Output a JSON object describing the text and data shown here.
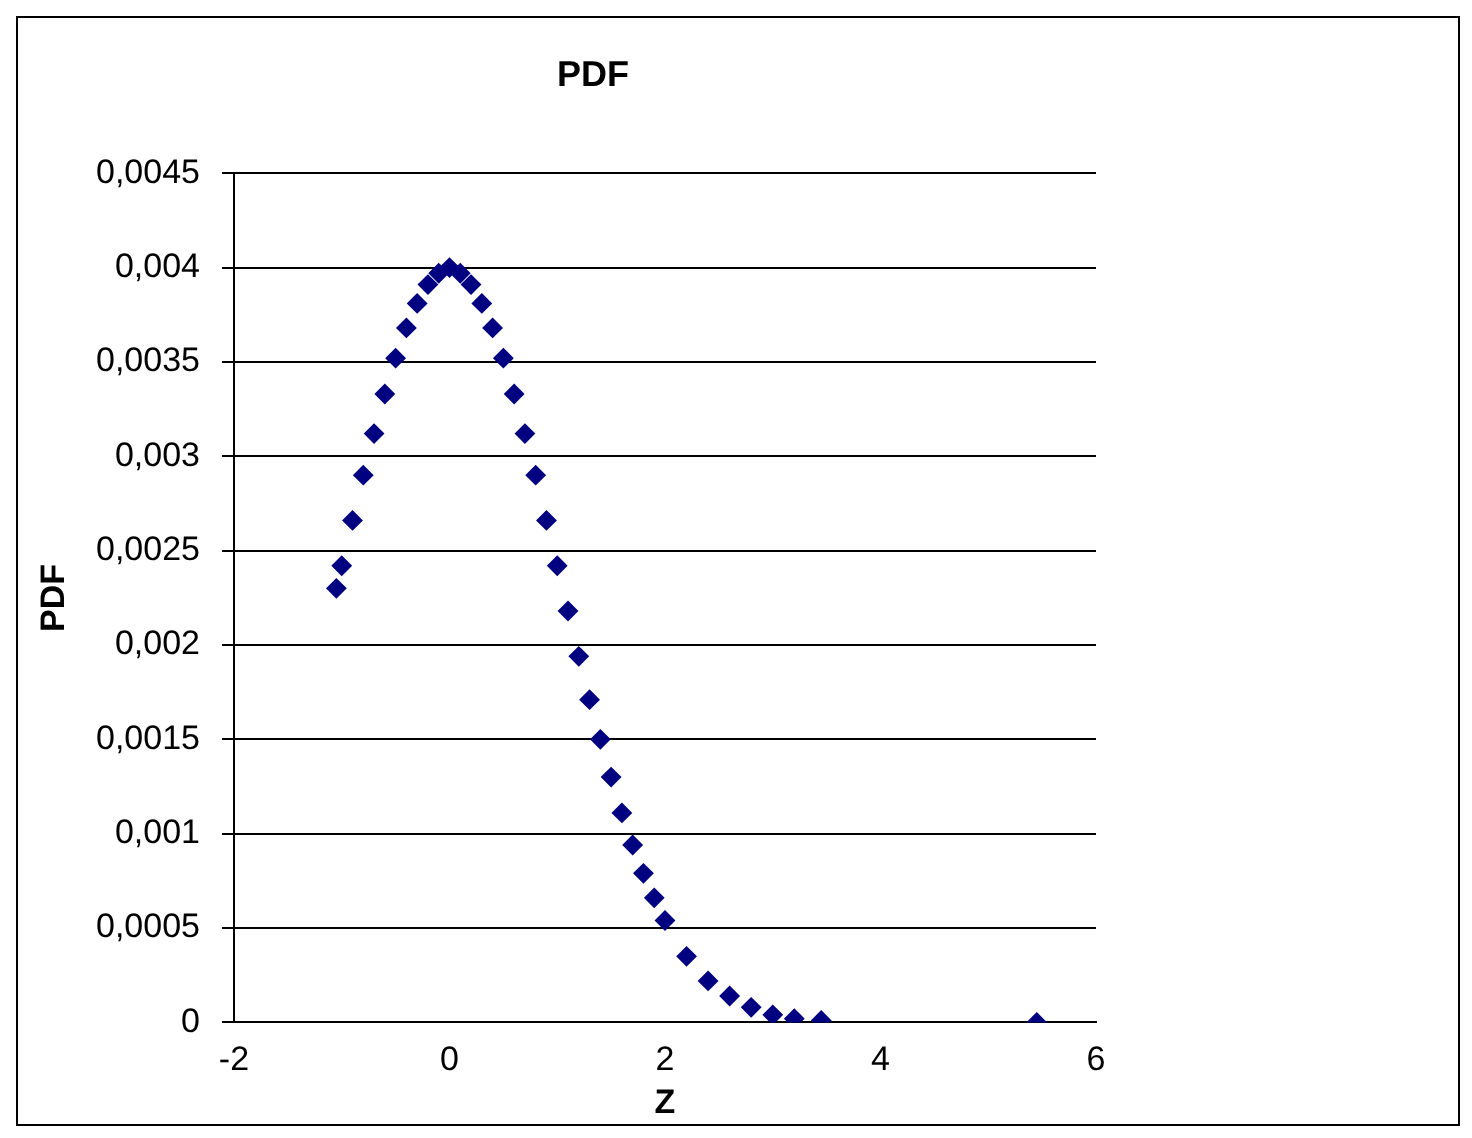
{
  "chart_data": {
    "type": "scatter",
    "title": "PDF",
    "xlabel": "Z",
    "ylabel": "PDF",
    "marker": "diamond",
    "grid": "y",
    "legend": false,
    "xlim": [
      -2,
      6
    ],
    "xticks": [
      -2,
      0,
      2,
      4,
      6
    ],
    "ylim": [
      0,
      0.0045
    ],
    "yticks": [
      0,
      {
        "value": 0.0005,
        "label": "0,0005"
      },
      {
        "value": 0.001,
        "label": "0,001"
      },
      {
        "value": 0.0015,
        "label": "0,0015"
      },
      {
        "value": 0.002,
        "label": "0,002"
      },
      {
        "value": 0.0025,
        "label": "0,0025"
      },
      {
        "value": 0.003,
        "label": "0,003"
      },
      {
        "value": 0.0035,
        "label": "0,0035"
      },
      {
        "value": 0.004,
        "label": "0,004"
      },
      {
        "value": 0.0045,
        "label": "0,0045"
      }
    ],
    "series": [
      {
        "color": "#000080",
        "x": [
          -1.05,
          -1.0,
          -0.9,
          -0.8,
          -0.7,
          -0.6,
          -0.5,
          -0.4,
          -0.3,
          -0.2,
          -0.1,
          0,
          0.1,
          0.2,
          0.3,
          0.4,
          0.5,
          0.6,
          0.7,
          0.8,
          0.9,
          1.0,
          1.1,
          1.2,
          1.3,
          1.4,
          1.5,
          1.6,
          1.7,
          1.8,
          1.9,
          2.0,
          2.2,
          2.4,
          2.6,
          2.8,
          3.0,
          3.2,
          3.45,
          5.45
        ],
        "values": [
          0.0023,
          0.00242,
          0.00266,
          0.0029,
          0.00312,
          0.00333,
          0.00352,
          0.00368,
          0.00381,
          0.00391,
          0.00397,
          0.004,
          0.00397,
          0.00391,
          0.00381,
          0.00368,
          0.00352,
          0.00333,
          0.00312,
          0.0029,
          0.00266,
          0.00242,
          0.00218,
          0.00194,
          0.00171,
          0.0015,
          0.0013,
          0.00111,
          0.00094,
          0.00079,
          0.00066,
          0.00054,
          0.00035,
          0.00022,
          0.00014,
          8e-05,
          4e-05,
          2e-05,
          1e-05,
          0
        ]
      }
    ]
  }
}
